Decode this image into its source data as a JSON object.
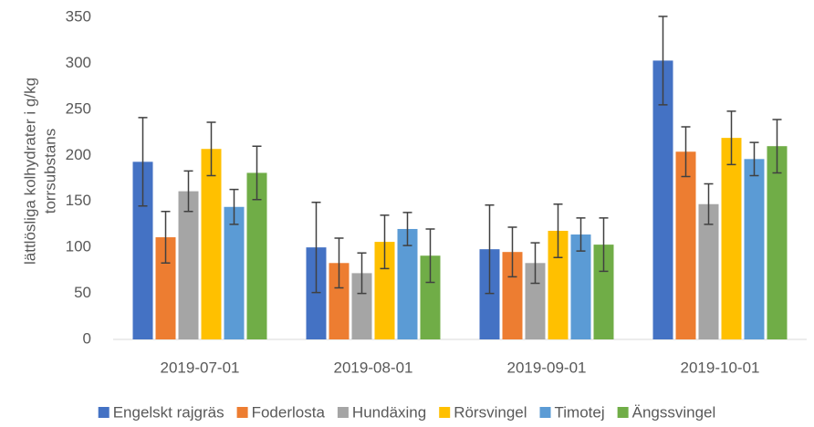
{
  "chart_data": {
    "type": "bar",
    "ylabel": [
      "lättlösliga kolhydrater i g/kg",
      "torrsubstans"
    ],
    "categories": [
      "2019-07-01",
      "2019-08-01",
      "2019-09-01",
      "2019-10-01"
    ],
    "series": [
      {
        "name": "Engelskt rajgräs",
        "color": "#4472c4",
        "values": [
          193,
          100,
          98,
          303
        ],
        "errors": [
          48,
          49,
          48,
          48
        ]
      },
      {
        "name": "Foderlosta",
        "color": "#ed7d31",
        "values": [
          111,
          83,
          95,
          204
        ],
        "errors": [
          28,
          27,
          27,
          27
        ]
      },
      {
        "name": "Hundäxing",
        "color": "#a5a5a5",
        "values": [
          161,
          72,
          83,
          147
        ],
        "errors": [
          22,
          22,
          22,
          22
        ]
      },
      {
        "name": "Rörsvingel",
        "color": "#ffc000",
        "values": [
          207,
          106,
          118,
          219
        ],
        "errors": [
          29,
          29,
          29,
          29
        ]
      },
      {
        "name": "Timotej",
        "color": "#5b9bd5",
        "values": [
          144,
          120,
          114,
          196
        ],
        "errors": [
          19,
          18,
          18,
          18
        ]
      },
      {
        "name": "Ängssvingel",
        "color": "#70ad47",
        "values": [
          181,
          91,
          103,
          210
        ],
        "errors": [
          29,
          29,
          29,
          29
        ]
      }
    ],
    "ylim": [
      0,
      350
    ],
    "yticks": [
      0,
      50,
      100,
      150,
      200,
      250,
      300,
      350
    ],
    "grid": false,
    "legend": "bottom"
  }
}
